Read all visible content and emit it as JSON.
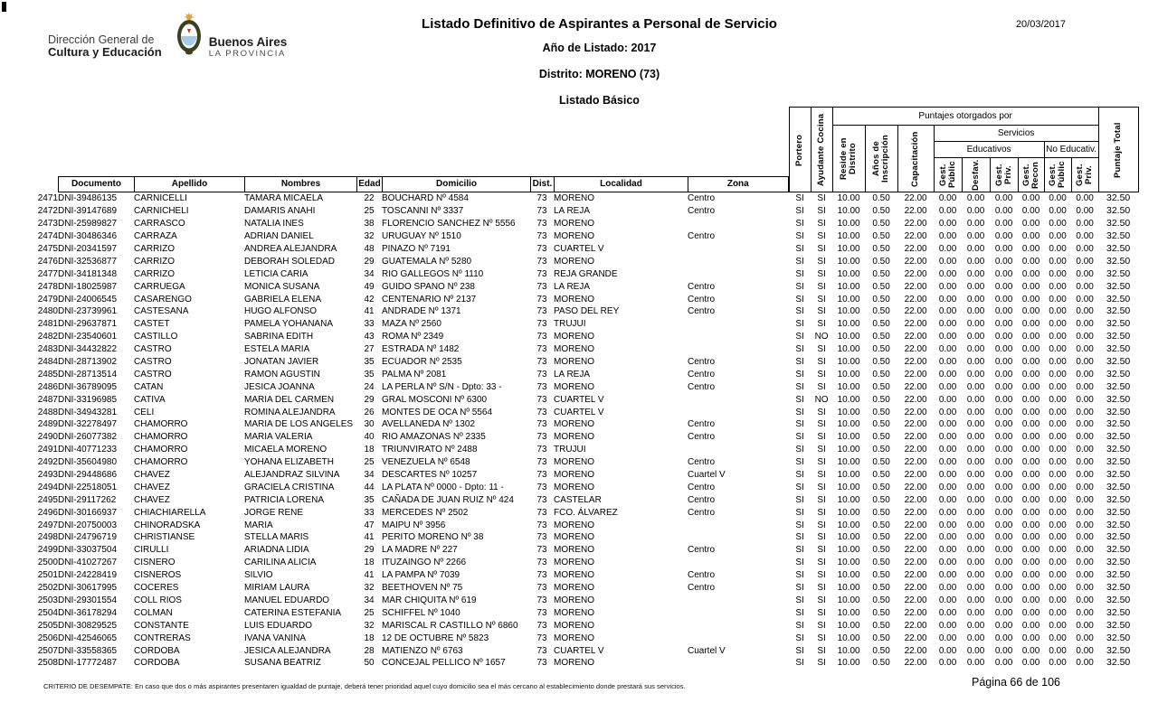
{
  "page": {
    "date": "20/03/2017",
    "footer_note": "CRITERIO DE DESEMPATE: En caso que dos o más aspirantes presentaren igualdad de puntaje, deberá tener prioridad aquel cuyo domicilio sea el más cercano al establecimiento donde prestará sus servicios.",
    "page_label": "Página 66 de 106"
  },
  "logo": {
    "icon": "coat-of-arms-icon",
    "line1": "Dirección General de",
    "line2": "Cultura y Educación",
    "brand1": "Buenos Aires",
    "brand2": "LA PROVINCIA",
    "colors": {
      "sun_gold": "#e8a33d",
      "wreath_dark": "#3a4020",
      "sky_blue": "#a8cbe5",
      "cap_red": "#c0392b"
    }
  },
  "header": {
    "title": "Listado Definitivo de Aspirantes a Personal de Servicio",
    "year_label": "Año de Listado: 2017",
    "district_label": "Distrito: MORENO (73)",
    "list_label": "Listado Básico"
  },
  "table": {
    "headers": {
      "documento": "Documento",
      "apellido": "Apellido",
      "nombres": "Nombres",
      "edad": "Edad",
      "domicilio": "Domicilio",
      "dist": "Dist.",
      "localidad": "Localidad",
      "zona": "Zona",
      "portero": "Portero",
      "ayudante": "Ayudante Cocina",
      "puntajes_group": "Puntajes otorgados por",
      "servicios_group": "Servicios",
      "educativos_group": "Educativos",
      "no_educativos_group": "No Educativ.",
      "reside": "Reside en Distrito",
      "anios": "Años de Inscripción",
      "capacitacion": "Capacitación",
      "gest": [
        "Gest. Públic",
        "Desfav.",
        "Gest. Priv.",
        "Gest. Recon",
        "Gest. Públic",
        "Gest. Priv."
      ],
      "total": "Puntaje Total"
    },
    "col_keys": [
      "num",
      "documento",
      "apellido",
      "nombres",
      "edad",
      "domicilio",
      "dist",
      "localidad",
      "zona",
      "portero",
      "ayudante",
      "reside",
      "anios",
      "capacitacion",
      "e_gp",
      "desf",
      "e_pr",
      "e_re",
      "n_gp",
      "n_pr",
      "total"
    ],
    "rows": [
      [
        "2471",
        "DNI-39486135",
        "CARNICELLI",
        "TAMARA MICAELA",
        "22",
        "BOUCHARD Nº 4584",
        "73",
        "MORENO",
        "Centro",
        "SI",
        "SI",
        "10.00",
        "0.50",
        "22.00",
        "0.00",
        "0.00",
        "0.00",
        "0.00",
        "0.00",
        "0.00",
        "32.50"
      ],
      [
        "2472",
        "DNI-39147689",
        "CARNICHELI",
        "DAMARIS ANAHI",
        "25",
        "TOSCANNI Nº 3337",
        "73",
        "LA REJA",
        "Centro",
        "SI",
        "SI",
        "10.00",
        "0.50",
        "22.00",
        "0.00",
        "0.00",
        "0.00",
        "0.00",
        "0.00",
        "0.00",
        "32.50"
      ],
      [
        "2473",
        "DNI-25989827",
        "CARRASCO",
        "NATALIA INES",
        "38",
        "FLORENCIO SANCHEZ Nº 5556",
        "73",
        "MORENO",
        "",
        "SI",
        "SI",
        "10.00",
        "0.50",
        "22.00",
        "0.00",
        "0.00",
        "0.00",
        "0.00",
        "0.00",
        "0.00",
        "32.50"
      ],
      [
        "2474",
        "DNI-30486346",
        "CARRAZA",
        "ADRIAN DANIEL",
        "32",
        "URUGUAY Nº 1510",
        "73",
        "MORENO",
        "Centro",
        "SI",
        "SI",
        "10.00",
        "0.50",
        "22.00",
        "0.00",
        "0.00",
        "0.00",
        "0.00",
        "0.00",
        "0.00",
        "32.50"
      ],
      [
        "2475",
        "DNI-20341597",
        "CARRIZO",
        "ANDREA ALEJANDRA",
        "48",
        "PINAZO Nº 7191",
        "73",
        "CUARTEL V",
        "",
        "SI",
        "SI",
        "10.00",
        "0.50",
        "22.00",
        "0.00",
        "0.00",
        "0.00",
        "0.00",
        "0.00",
        "0.00",
        "32.50"
      ],
      [
        "2476",
        "DNI-32536877",
        "CARRIZO",
        "DEBORAH SOLEDAD",
        "29",
        "GUATEMALA Nº 5280",
        "73",
        "MORENO",
        "",
        "SI",
        "SI",
        "10.00",
        "0.50",
        "22.00",
        "0.00",
        "0.00",
        "0.00",
        "0.00",
        "0.00",
        "0.00",
        "32.50"
      ],
      [
        "2477",
        "DNI-34181348",
        "CARRIZO",
        "LETICIA CARIA",
        "34",
        "RIO GALLEGOS Nº 1110",
        "73",
        "REJA GRANDE",
        "",
        "SI",
        "SI",
        "10.00",
        "0.50",
        "22.00",
        "0.00",
        "0.00",
        "0.00",
        "0.00",
        "0.00",
        "0.00",
        "32.50"
      ],
      [
        "2478",
        "DNI-18025987",
        "CARRUEGA",
        "MONICA SUSANA",
        "49",
        "GUIDO SPANO Nº 238",
        "73",
        "LA REJA",
        "Centro",
        "SI",
        "SI",
        "10.00",
        "0.50",
        "22.00",
        "0.00",
        "0.00",
        "0.00",
        "0.00",
        "0.00",
        "0.00",
        "32.50"
      ],
      [
        "2479",
        "DNI-24006545",
        "CASARENGO",
        "GABRIELA ELENA",
        "42",
        "CENTENARIO Nº 2137",
        "73",
        "MORENO",
        "Centro",
        "SI",
        "SI",
        "10.00",
        "0.50",
        "22.00",
        "0.00",
        "0.00",
        "0.00",
        "0.00",
        "0.00",
        "0.00",
        "32.50"
      ],
      [
        "2480",
        "DNI-23739961",
        "CASTESANA",
        "HUGO ALFONSO",
        "41",
        "ANDRADE Nº 1371",
        "73",
        "PASO DEL REY",
        "Centro",
        "SI",
        "SI",
        "10.00",
        "0.50",
        "22.00",
        "0.00",
        "0.00",
        "0.00",
        "0.00",
        "0.00",
        "0.00",
        "32.50"
      ],
      [
        "2481",
        "DNI-29637871",
        "CASTET",
        "PAMELA YOHANANA",
        "33",
        "MAZA Nº 2560",
        "73",
        "TRUJUI",
        "",
        "SI",
        "SI",
        "10.00",
        "0.50",
        "22.00",
        "0.00",
        "0.00",
        "0.00",
        "0.00",
        "0.00",
        "0.00",
        "32.50"
      ],
      [
        "2482",
        "DNI-23540601",
        "CASTILLO",
        "SABRINA EDITH",
        "43",
        "ROMA Nº 2349",
        "73",
        "MORENO",
        "",
        "SI",
        "NO",
        "10.00",
        "0.50",
        "22.00",
        "0.00",
        "0.00",
        "0.00",
        "0.00",
        "0.00",
        "0.00",
        "32.50"
      ],
      [
        "2483",
        "DNI-34432822",
        "CASTRO",
        "ESTELA MARIA",
        "27",
        "ESTRADA Nº 1482",
        "73",
        "MORENO",
        "",
        "SI",
        "SI",
        "10.00",
        "0.50",
        "22.00",
        "0.00",
        "0.00",
        "0.00",
        "0.00",
        "0.00",
        "0.00",
        "32.50"
      ],
      [
        "2484",
        "DNI-28713902",
        "CASTRO",
        "JONATAN JAVIER",
        "35",
        "ECUADOR Nº 2535",
        "73",
        "MORENO",
        "Centro",
        "SI",
        "SI",
        "10.00",
        "0.50",
        "22.00",
        "0.00",
        "0.00",
        "0.00",
        "0.00",
        "0.00",
        "0.00",
        "32.50"
      ],
      [
        "2485",
        "DNI-28713514",
        "CASTRO",
        "RAMON AGUSTIN",
        "35",
        "PALMA Nº 2081",
        "73",
        "LA REJA",
        "Centro",
        "SI",
        "SI",
        "10.00",
        "0.50",
        "22.00",
        "0.00",
        "0.00",
        "0.00",
        "0.00",
        "0.00",
        "0.00",
        "32.50"
      ],
      [
        "2486",
        "DNI-36789095",
        "CATAN",
        "JESICA JOANNA",
        "24",
        "LA PERLA Nº S/N - Dpto: 33 -",
        "73",
        "MORENO",
        "Centro",
        "SI",
        "SI",
        "10.00",
        "0.50",
        "22.00",
        "0.00",
        "0.00",
        "0.00",
        "0.00",
        "0.00",
        "0.00",
        "32.50"
      ],
      [
        "2487",
        "DNI-33196985",
        "CATIVA",
        "MARIA DEL CARMEN",
        "29",
        "GRAL MOSCONI Nº 6300",
        "73",
        "CUARTEL V",
        "",
        "SI",
        "NO",
        "10.00",
        "0.50",
        "22.00",
        "0.00",
        "0.00",
        "0.00",
        "0.00",
        "0.00",
        "0.00",
        "32.50"
      ],
      [
        "2488",
        "DNI-34943281",
        "CELI",
        "ROMINA ALEJANDRA",
        "26",
        "MONTES DE OCA Nº 5564",
        "73",
        "CUARTEL V",
        "",
        "SI",
        "SI",
        "10.00",
        "0.50",
        "22.00",
        "0.00",
        "0.00",
        "0.00",
        "0.00",
        "0.00",
        "0.00",
        "32.50"
      ],
      [
        "2489",
        "DNI-32278497",
        "CHAMORRO",
        "MARIA DE LOS ANGELES",
        "30",
        "AVELLANEDA Nº 1302",
        "73",
        "MORENO",
        "Centro",
        "SI",
        "SI",
        "10.00",
        "0.50",
        "22.00",
        "0.00",
        "0.00",
        "0.00",
        "0.00",
        "0.00",
        "0.00",
        "32.50"
      ],
      [
        "2490",
        "DNI-26077382",
        "CHAMORRO",
        "MARIA VALERIA",
        "40",
        "RIO AMAZONAS Nº 2335",
        "73",
        "MORENO",
        "Centro",
        "SI",
        "SI",
        "10.00",
        "0.50",
        "22.00",
        "0.00",
        "0.00",
        "0.00",
        "0.00",
        "0.00",
        "0.00",
        "32.50"
      ],
      [
        "2491",
        "DNI-40771233",
        "CHAMORRO",
        "MICAELA MORENO",
        "18",
        "TRIUNVIRATO Nº 2488",
        "73",
        "TRUJUI",
        "",
        "SI",
        "SI",
        "10.00",
        "0.50",
        "22.00",
        "0.00",
        "0.00",
        "0.00",
        "0.00",
        "0.00",
        "0.00",
        "32.50"
      ],
      [
        "2492",
        "DNI-35604980",
        "CHAMORRO",
        "YOHANA ELIZABETH",
        "25",
        "VENEZUELA Nº 6548",
        "73",
        "MORENO",
        "Centro",
        "SI",
        "SI",
        "10.00",
        "0.50",
        "22.00",
        "0.00",
        "0.00",
        "0.00",
        "0.00",
        "0.00",
        "0.00",
        "32.50"
      ],
      [
        "2493",
        "DNI-29448686",
        "CHAVEZ",
        "ALEJANDRAZ SILVINA",
        "34",
        "DESCARTES Nº 10257",
        "73",
        "MORENO",
        "Cuartel V",
        "SI",
        "SI",
        "10.00",
        "0.50",
        "22.00",
        "0.00",
        "0.00",
        "0.00",
        "0.00",
        "0.00",
        "0.00",
        "32.50"
      ],
      [
        "2494",
        "DNI-22518051",
        "CHAVEZ",
        "GRACIELA CRISTINA",
        "44",
        "LA PLATA Nº 0000 - Dpto: 11 -",
        "73",
        "MORENO",
        "Centro",
        "SI",
        "SI",
        "10.00",
        "0.50",
        "22.00",
        "0.00",
        "0.00",
        "0.00",
        "0.00",
        "0.00",
        "0.00",
        "32.50"
      ],
      [
        "2495",
        "DNI-29117262",
        "CHAVEZ",
        "PATRICIA LORENA",
        "35",
        "CAÑADA DE JUAN RUIZ Nº 424",
        "73",
        "CASTELAR",
        "Centro",
        "SI",
        "SI",
        "10.00",
        "0.50",
        "22.00",
        "0.00",
        "0.00",
        "0.00",
        "0.00",
        "0.00",
        "0.00",
        "32.50"
      ],
      [
        "2496",
        "DNI-30166937",
        "CHIACHIARELLA",
        "JORGE RENE",
        "33",
        "MERCEDES Nº 2502",
        "73",
        "FCO. ÁLVAREZ",
        "Centro",
        "SI",
        "SI",
        "10.00",
        "0.50",
        "22.00",
        "0.00",
        "0.00",
        "0.00",
        "0.00",
        "0.00",
        "0.00",
        "32.50"
      ],
      [
        "2497",
        "DNI-20750003",
        "CHINORADSKA",
        "MARIA",
        "47",
        "MAIPU Nº 3956",
        "73",
        "MORENO",
        "",
        "SI",
        "SI",
        "10.00",
        "0.50",
        "22.00",
        "0.00",
        "0.00",
        "0.00",
        "0.00",
        "0.00",
        "0.00",
        "32.50"
      ],
      [
        "2498",
        "DNI-24796719",
        "CHRISTIANSE",
        "STELLA MARIS",
        "41",
        "PERITO MORENO Nº 38",
        "73",
        "MORENO",
        "",
        "SI",
        "SI",
        "10.00",
        "0.50",
        "22.00",
        "0.00",
        "0.00",
        "0.00",
        "0.00",
        "0.00",
        "0.00",
        "32.50"
      ],
      [
        "2499",
        "DNI-33037504",
        "CIRULLI",
        "ARIADNA LIDIA",
        "29",
        "LA MADRE Nº 227",
        "73",
        "MORENO",
        "Centro",
        "SI",
        "SI",
        "10.00",
        "0.50",
        "22.00",
        "0.00",
        "0.00",
        "0.00",
        "0.00",
        "0.00",
        "0.00",
        "32.50"
      ],
      [
        "2500",
        "DNI-41027267",
        "CISNERO",
        "CARILINA ALICIA",
        "18",
        "ITUZAINGO Nº 2266",
        "73",
        "MORENO",
        "",
        "SI",
        "SI",
        "10.00",
        "0.50",
        "22.00",
        "0.00",
        "0.00",
        "0.00",
        "0.00",
        "0.00",
        "0.00",
        "32.50"
      ],
      [
        "2501",
        "DNI-24228419",
        "CISNEROS",
        "SILVIO",
        "41",
        "LA PAMPA Nº 7039",
        "73",
        "MORENO",
        "Centro",
        "SI",
        "SI",
        "10.00",
        "0.50",
        "22.00",
        "0.00",
        "0.00",
        "0.00",
        "0.00",
        "0.00",
        "0.00",
        "32.50"
      ],
      [
        "2502",
        "DNI-30617995",
        "COCERES",
        "MIRIAM LAURA",
        "32",
        "BEETHOVEN Nº 75",
        "73",
        "MORENO",
        "Centro",
        "SI",
        "SI",
        "10.00",
        "0.50",
        "22.00",
        "0.00",
        "0.00",
        "0.00",
        "0.00",
        "0.00",
        "0.00",
        "32.50"
      ],
      [
        "2503",
        "DNI-29301554",
        "COLL RIOS",
        "MANUEL EDUARDO",
        "34",
        "MAR CHIQUITA Nº 619",
        "73",
        "MORENO",
        "",
        "SI",
        "SI",
        "10.00",
        "0.50",
        "22.00",
        "0.00",
        "0.00",
        "0.00",
        "0.00",
        "0.00",
        "0.00",
        "32.50"
      ],
      [
        "2504",
        "DNI-36178294",
        "COLMAN",
        "CATERINA ESTEFANIA",
        "25",
        "SCHIFFEL Nº 1040",
        "73",
        "MORENO",
        "",
        "SI",
        "SI",
        "10.00",
        "0.50",
        "22.00",
        "0.00",
        "0.00",
        "0.00",
        "0.00",
        "0.00",
        "0.00",
        "32.50"
      ],
      [
        "2505",
        "DNI-30829525",
        "CONSTANTE",
        "LUIS EDUARDO",
        "32",
        "MARISCAL R CASTILLO Nº 6860",
        "73",
        "MORENO",
        "",
        "SI",
        "SI",
        "10.00",
        "0.50",
        "22.00",
        "0.00",
        "0.00",
        "0.00",
        "0.00",
        "0.00",
        "0.00",
        "32.50"
      ],
      [
        "2506",
        "DNI-42546065",
        "CONTRERAS",
        "IVANA VANINA",
        "18",
        "12 DE OCTUBRE Nº 5823",
        "73",
        "MORENO",
        "",
        "SI",
        "SI",
        "10.00",
        "0.50",
        "22.00",
        "0.00",
        "0.00",
        "0.00",
        "0.00",
        "0.00",
        "0.00",
        "32.50"
      ],
      [
        "2507",
        "DNI-33558365",
        "CORDOBA",
        "JESICA ALEJANDRA",
        "28",
        "MATIENZO Nº 6763",
        "73",
        "CUARTEL V",
        "Cuartel V",
        "SI",
        "SI",
        "10.00",
        "0.50",
        "22.00",
        "0.00",
        "0.00",
        "0.00",
        "0.00",
        "0.00",
        "0.00",
        "32.50"
      ],
      [
        "2508",
        "DNI-17772487",
        "CORDOBA",
        "SUSANA BEATRIZ",
        "50",
        "CONCEJAL PELLICO Nº 1657",
        "73",
        "MORENO",
        "",
        "SI",
        "SI",
        "10.00",
        "0.50",
        "22.00",
        "0.00",
        "0.00",
        "0.00",
        "0.00",
        "0.00",
        "0.00",
        "32.50"
      ]
    ]
  }
}
